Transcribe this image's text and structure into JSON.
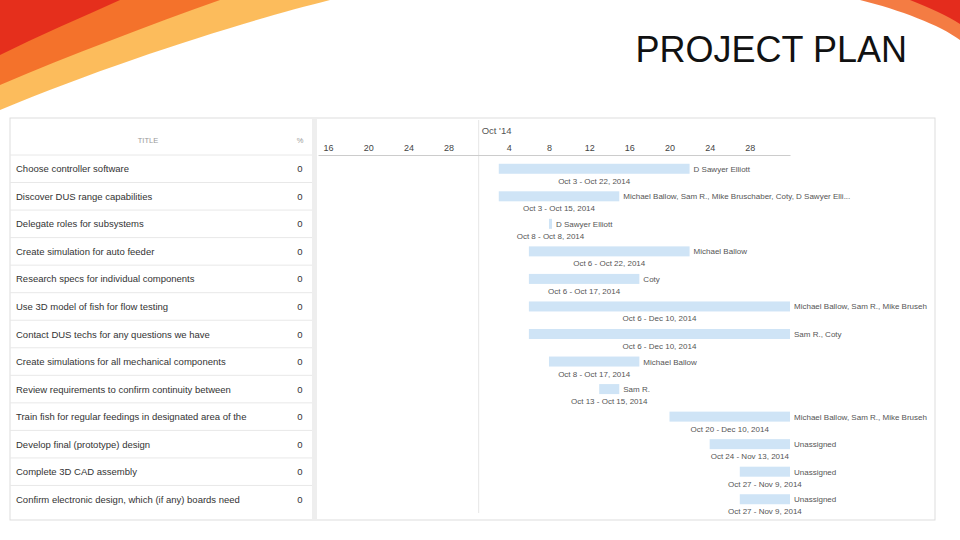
{
  "title": "PROJECT PLAN",
  "chart_data": {
    "type": "gantt",
    "orientation": "horizontal",
    "columns": [
      "TITLE",
      "%"
    ],
    "categories": [
      "Choose controller software",
      "Discover DUS range capabilities",
      "Delegate roles for subsystems",
      "Create simulation for auto feeder",
      "Research specs for individual components",
      "Use 3D model of fish for flow testing",
      "Contact DUS techs for any questions we have",
      "Create simulations for all mechanical components",
      "Review requirements to confirm continuity between",
      "Train fish for regular feedings in designated area of the",
      "Develop final (prototype) design",
      "Complete 3D CAD assembly",
      "Confirm electronic design, which (if any) boards need"
    ],
    "percent": [
      0,
      0,
      0,
      0,
      0,
      0,
      0,
      0,
      0,
      0,
      0,
      0,
      0
    ],
    "start": [
      "2014-10-03",
      "2014-10-03",
      "2014-10-08",
      "2014-10-06",
      "2014-10-06",
      "2014-10-06",
      "2014-10-06",
      "2014-10-08",
      "2014-10-13",
      "2014-10-20",
      "2014-10-24",
      "2014-10-27",
      "2014-10-27"
    ],
    "end": [
      "2014-10-22",
      "2014-10-15",
      "2014-10-08",
      "2014-10-22",
      "2014-10-17",
      "2014-12-10",
      "2014-12-10",
      "2014-10-17",
      "2014-10-15",
      "2014-12-10",
      "2014-11-13",
      "2014-11-09",
      "2014-11-09"
    ],
    "value_labels": [
      "Oct 3 - Oct 22, 2014",
      "Oct 3 - Oct 15, 2014",
      "Oct 8 - Oct 8, 2014",
      "Oct 6 - Oct 22, 2014",
      "Oct 6 - Oct 17, 2014",
      "Oct 6 - Dec 10, 2014",
      "Oct 6 - Dec 10, 2014",
      "Oct 8 - Oct 17, 2014",
      "Oct 13 - Oct 15, 2014",
      "Oct 20 - Dec 10, 2014",
      "Oct 24 - Nov 13, 2014",
      "Oct 27 - Nov 9, 2014",
      "Oct 27 - Nov 9, 2014"
    ],
    "assignees": [
      "D Sawyer Elliott",
      "Michael Ballow, Sam R., Mike Bruschaber, Coty, D Sawyer Elli...",
      "D Sawyer Elliott",
      "Michael Ballow",
      "Coty",
      "Michael Ballow, Sam R., Mike Bruseh",
      "Sam R., Coty",
      "Michael Ballow",
      "Sam R.",
      "Michael Ballow, Sam R., Mike Bruseh",
      "Unassigned",
      "Unassigned",
      "Unassigned"
    ],
    "color": "#cfe4f6",
    "grid": false,
    "xlim": [
      "2014-09-15",
      "2014-11-01"
    ],
    "xticks": [
      {
        "value": "2014-09-16",
        "label": "16"
      },
      {
        "value": "2014-09-20",
        "label": "20"
      },
      {
        "value": "2014-09-24",
        "label": "24"
      },
      {
        "value": "2014-09-28",
        "label": "28"
      },
      {
        "value": "2014-10-04",
        "label": "4"
      },
      {
        "value": "2014-10-08",
        "label": "8"
      },
      {
        "value": "2014-10-12",
        "label": "12"
      },
      {
        "value": "2014-10-16",
        "label": "16"
      },
      {
        "value": "2014-10-20",
        "label": "20"
      },
      {
        "value": "2014-10-24",
        "label": "24"
      },
      {
        "value": "2014-10-28",
        "label": "28"
      }
    ],
    "month_ticks": [
      {
        "value": "2014-10-01",
        "label": "Oct '14"
      }
    ]
  }
}
